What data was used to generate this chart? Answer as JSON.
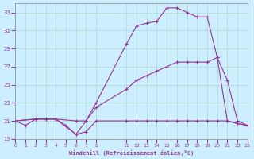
{
  "background_color": "#cceeff",
  "grid_color": "#aaddcc",
  "line_color": "#993399",
  "marker_color": "#993399",
  "xlabel": "Windchill (Refroidissement éolien,°C)",
  "ylim": [
    19,
    34
  ],
  "xlim": [
    0,
    23
  ],
  "yticks": [
    19,
    21,
    23,
    25,
    27,
    29,
    31,
    33
  ],
  "xtick_positions": [
    0,
    1,
    2,
    3,
    4,
    5,
    6,
    7,
    8,
    11,
    12,
    13,
    14,
    15,
    16,
    17,
    18,
    19,
    20,
    21,
    22,
    23
  ],
  "xtick_labels": [
    "0",
    "1",
    "2",
    "3",
    "4",
    "5",
    "6",
    "7",
    "8",
    "11",
    "12",
    "13",
    "14",
    "15",
    "16",
    "17",
    "18",
    "19",
    "20",
    "21",
    "22",
    "23"
  ],
  "curve1_x": [
    0,
    1,
    2,
    3,
    4,
    5,
    6,
    7,
    8,
    11,
    12,
    13,
    14,
    15,
    16,
    17,
    18,
    19,
    20,
    21,
    22,
    23
  ],
  "curve1_y": [
    21.0,
    20.5,
    21.2,
    21.2,
    21.2,
    20.5,
    19.5,
    19.8,
    21.0,
    21.0,
    21.0,
    21.0,
    21.0,
    21.0,
    21.0,
    21.0,
    21.0,
    21.0,
    21.0,
    21.0,
    20.7,
    20.5
  ],
  "curve2_x": [
    0,
    2,
    3,
    4,
    6,
    7,
    8,
    11,
    12,
    13,
    14,
    15,
    16,
    17,
    18,
    19,
    20,
    21,
    22,
    23
  ],
  "curve2_y": [
    21.0,
    21.2,
    21.2,
    21.2,
    21.0,
    21.0,
    22.5,
    24.5,
    25.5,
    26.0,
    26.5,
    27.0,
    27.5,
    27.5,
    27.5,
    27.5,
    28.0,
    25.5,
    21.0,
    20.5
  ],
  "curve3_x": [
    0,
    2,
    3,
    4,
    6,
    7,
    8,
    11,
    12,
    13,
    14,
    15,
    16,
    17,
    18,
    19,
    20,
    21,
    22,
    23
  ],
  "curve3_y": [
    21.0,
    21.2,
    21.2,
    21.2,
    19.5,
    21.0,
    23.0,
    29.5,
    31.5,
    31.8,
    32.0,
    33.5,
    33.5,
    33.0,
    32.5,
    32.5,
    28.0,
    21.0,
    20.7,
    20.5
  ]
}
